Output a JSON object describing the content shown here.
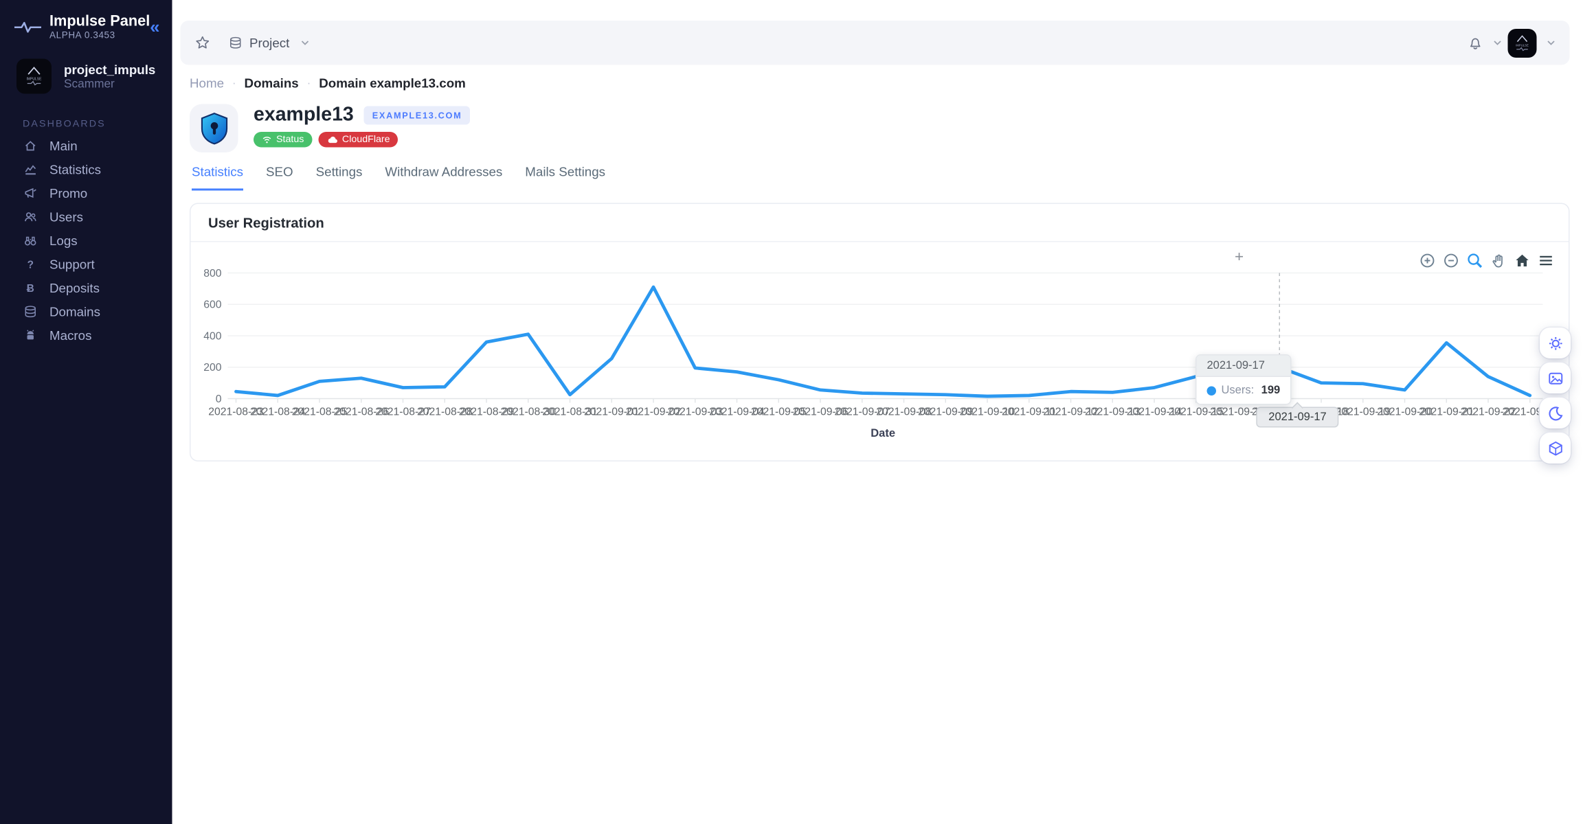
{
  "sidebar": {
    "brand": {
      "title": "Impulse Panel",
      "version": "ALPHA 0.3453"
    },
    "user": {
      "name": "project_impuls",
      "role": "Scammer"
    },
    "section_label": "DASHBOARDS",
    "items": [
      {
        "label": "Main",
        "icon": "home-icon"
      },
      {
        "label": "Statistics",
        "icon": "chart-icon"
      },
      {
        "label": "Promo",
        "icon": "megaphone-icon"
      },
      {
        "label": "Users",
        "icon": "users-icon"
      },
      {
        "label": "Logs",
        "icon": "binoculars-icon"
      },
      {
        "label": "Support",
        "icon": "question-icon"
      },
      {
        "label": "Deposits",
        "icon": "bitcoin-icon"
      },
      {
        "label": "Domains",
        "icon": "database-icon"
      },
      {
        "label": "Macros",
        "icon": "android-icon"
      }
    ]
  },
  "topbar": {
    "project_label": "Project",
    "icons": [
      "star-icon",
      "database-icon",
      "bell-icon",
      "avatar",
      "chevron-down-icon"
    ]
  },
  "breadcrumb": {
    "items": [
      "Home",
      "Domains",
      "Domain example13.com"
    ],
    "separator": "·"
  },
  "domain": {
    "name": "example13",
    "badge": "EXAMPLE13.COM",
    "status_label": "Status",
    "cloudflare_label": "CloudFlare"
  },
  "tabs": [
    {
      "label": "Statistics",
      "active": true
    },
    {
      "label": "SEO",
      "active": false
    },
    {
      "label": "Settings",
      "active": false
    },
    {
      "label": "Withdraw Addresses",
      "active": false
    },
    {
      "label": "Mails Settings",
      "active": false
    }
  ],
  "card": {
    "title": "User Registration"
  },
  "chart_toolbar_icons": [
    "zoom-in-icon",
    "zoom-out-icon",
    "selection-zoom-icon",
    "pan-icon",
    "home-reset-icon",
    "menu-icon"
  ],
  "floating_buttons": [
    "settings-gear-icon",
    "image-export-icon",
    "dark-mode-moon-icon",
    "cube-icon"
  ],
  "chart_data": {
    "type": "line",
    "title": "User Registration",
    "xlabel": "Date",
    "ylabel": "",
    "ylim": [
      0,
      800
    ],
    "yticks": [
      0,
      200,
      400,
      600,
      800
    ],
    "grid": true,
    "legend": "none",
    "x": [
      "2021-08-23",
      "2021-08-24",
      "2021-08-25",
      "2021-08-26",
      "2021-08-27",
      "2021-08-28",
      "2021-08-29",
      "2021-08-30",
      "2021-08-31",
      "2021-09-01",
      "2021-09-02",
      "2021-09-03",
      "2021-09-04",
      "2021-09-05",
      "2021-09-06",
      "2021-09-07",
      "2021-09-08",
      "2021-09-09",
      "2021-09-10",
      "2021-09-11",
      "2021-09-12",
      "2021-09-13",
      "2021-09-14",
      "2021-09-15",
      "2021-09-16",
      "2021-09-17",
      "2021-09-18",
      "2021-09-19",
      "2021-09-20",
      "2021-09-21",
      "2021-09-22",
      "2021-09-23"
    ],
    "series": [
      {
        "name": "Users",
        "color": "#2b98f0",
        "values": [
          45,
          20,
          110,
          130,
          70,
          75,
          360,
          410,
          25,
          255,
          710,
          195,
          170,
          120,
          55,
          35,
          30,
          25,
          15,
          20,
          45,
          40,
          70,
          140,
          180,
          199,
          100,
          95,
          55,
          355,
          140,
          20
        ]
      }
    ],
    "tooltip": {
      "date": "2021-09-17",
      "series_label": "Users:",
      "value": "199"
    }
  },
  "colors": {
    "accent_blue": "#4680ff",
    "line_blue": "#2b98f0",
    "status_green": "#48c16b",
    "cloudflare_red": "#d8383f",
    "fab_indigo": "#5b6cff",
    "sidebar_bg": "#11132a"
  }
}
